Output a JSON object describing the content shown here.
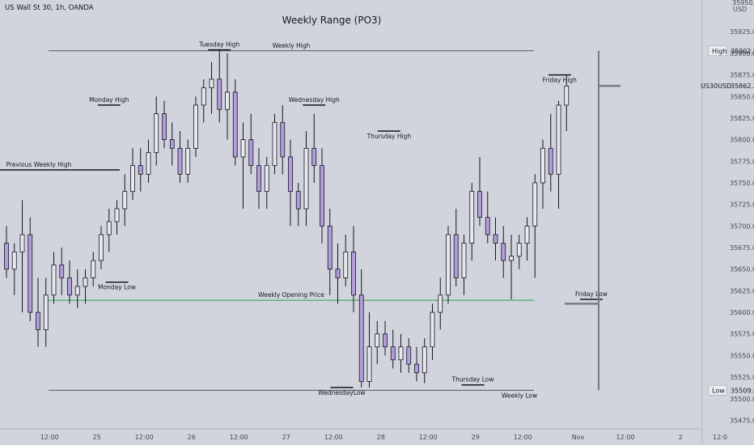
{
  "header": {
    "symbol_line": "US Wall St 30, 1h, OANDA",
    "title": "Weekly Range (PO3)"
  },
  "axis_top_labels": [
    "35950.0",
    "USD"
  ],
  "chart_data": {
    "type": "candlestick",
    "title": "Weekly Range (PO3)",
    "symbol": "US30USD",
    "y_axis": {
      "ticks": [
        35925.0,
        35900.0,
        35875.0,
        35850.0,
        35825.0,
        35800.0,
        35775.0,
        35750.0,
        35725.0,
        35700.0,
        35675.0,
        35650.0,
        35625.0,
        35600.0,
        35575.0,
        35550.0,
        35525.0,
        35500.0,
        35475.0
      ],
      "range": [
        35467.0,
        35958.0
      ],
      "position": "right"
    },
    "x_axis": {
      "ticks": [
        {
          "index": 3,
          "label": "12:00"
        },
        {
          "index": 9,
          "label": "25"
        },
        {
          "index": 15,
          "label": "12:00"
        },
        {
          "index": 21,
          "label": "26"
        },
        {
          "index": 27,
          "label": "12:00"
        },
        {
          "index": 33,
          "label": "27"
        },
        {
          "index": 39,
          "label": "12:00"
        },
        {
          "index": 45,
          "label": "28"
        },
        {
          "index": 51,
          "label": "12:00"
        },
        {
          "index": 57,
          "label": "29"
        },
        {
          "index": 63,
          "label": "12:00"
        },
        {
          "index": 70,
          "label": "Nov"
        },
        {
          "index": 76,
          "label": "12:00"
        },
        {
          "index": 83,
          "label": "2"
        },
        {
          "index": 88,
          "label": "12:0"
        }
      ]
    },
    "candle_colors": {
      "up": "#e8e8ee",
      "down": "#b39ddb",
      "outline": "#131722"
    },
    "candles": [
      [
        35680,
        35700,
        35640,
        35650
      ],
      [
        35650,
        35680,
        35620,
        35670
      ],
      [
        35670,
        35730,
        35600,
        35690
      ],
      [
        35690,
        35710,
        35590,
        35600
      ],
      [
        35600,
        35640,
        35560,
        35580
      ],
      [
        35580,
        35640,
        35560,
        35620
      ],
      [
        35620,
        35670,
        35610,
        35655
      ],
      [
        35655,
        35675,
        35620,
        35640
      ],
      [
        35640,
        35660,
        35610,
        35620
      ],
      [
        35620,
        35650,
        35605,
        35630
      ],
      [
        35630,
        35650,
        35610,
        35640
      ],
      [
        35640,
        35670,
        35630,
        35660
      ],
      [
        35660,
        35700,
        35650,
        35690
      ],
      [
        35690,
        35720,
        35670,
        35705
      ],
      [
        35705,
        35730,
        35690,
        35720
      ],
      [
        35720,
        35760,
        35700,
        35740
      ],
      [
        35740,
        35790,
        35730,
        35770
      ],
      [
        35770,
        35790,
        35740,
        35760
      ],
      [
        35760,
        35800,
        35750,
        35785
      ],
      [
        35785,
        35850,
        35770,
        35830
      ],
      [
        35830,
        35845,
        35790,
        35800
      ],
      [
        35800,
        35820,
        35770,
        35790
      ],
      [
        35790,
        35810,
        35750,
        35760
      ],
      [
        35760,
        35800,
        35750,
        35790
      ],
      [
        35790,
        35850,
        35780,
        35840
      ],
      [
        35840,
        35870,
        35820,
        35860
      ],
      [
        35860,
        35890,
        35830,
        35870
      ],
      [
        35870,
        35905,
        35820,
        35835
      ],
      [
        35835,
        35900,
        35800,
        35855
      ],
      [
        35855,
        35870,
        35770,
        35780
      ],
      [
        35780,
        35820,
        35720,
        35800
      ],
      [
        35800,
        35830,
        35760,
        35770
      ],
      [
        35770,
        35790,
        35720,
        35740
      ],
      [
        35740,
        35780,
        35720,
        35770
      ],
      [
        35770,
        35830,
        35760,
        35820
      ],
      [
        35820,
        35840,
        35760,
        35780
      ],
      [
        35780,
        35800,
        35700,
        35740
      ],
      [
        35740,
        35750,
        35700,
        35720
      ],
      [
        35720,
        35810,
        35700,
        35790
      ],
      [
        35790,
        35830,
        35750,
        35770
      ],
      [
        35770,
        35790,
        35680,
        35700
      ],
      [
        35700,
        35720,
        35620,
        35650
      ],
      [
        35650,
        35680,
        35610,
        35640
      ],
      [
        35640,
        35690,
        35630,
        35670
      ],
      [
        35670,
        35700,
        35600,
        35620
      ],
      [
        35620,
        35650,
        35513,
        35520
      ],
      [
        35520,
        35600,
        35513,
        35560
      ],
      [
        35560,
        35590,
        35540,
        35575
      ],
      [
        35575,
        35590,
        35550,
        35560
      ],
      [
        35560,
        35580,
        35535,
        35545
      ],
      [
        35545,
        35575,
        35530,
        35560
      ],
      [
        35560,
        35570,
        35530,
        35540
      ],
      [
        35540,
        35560,
        35520,
        35530
      ],
      [
        35530,
        35570,
        35518,
        35560
      ],
      [
        35560,
        35610,
        35545,
        35600
      ],
      [
        35600,
        35640,
        35580,
        35620
      ],
      [
        35620,
        35700,
        35610,
        35690
      ],
      [
        35690,
        35720,
        35630,
        35640
      ],
      [
        35640,
        35690,
        35620,
        35680
      ],
      [
        35680,
        35750,
        35660,
        35740
      ],
      [
        35740,
        35780,
        35700,
        35710
      ],
      [
        35710,
        35740,
        35680,
        35690
      ],
      [
        35690,
        35710,
        35660,
        35680
      ],
      [
        35680,
        35700,
        35640,
        35660
      ],
      [
        35660,
        35690,
        35615,
        35665
      ],
      [
        35665,
        35690,
        35650,
        35680
      ],
      [
        35680,
        35710,
        35660,
        35700
      ],
      [
        35700,
        35760,
        35640,
        35750
      ],
      [
        35750,
        35800,
        35720,
        35790
      ],
      [
        35790,
        35830,
        35740,
        35760
      ],
      [
        35760,
        35845,
        35720,
        35840
      ],
      [
        35840,
        35875,
        35810,
        35862
      ]
    ],
    "reference_lines": [
      {
        "label": "Weekly High",
        "value": 35902.9,
        "color": "#555555"
      },
      {
        "label": "Weekly Low",
        "value": 35509.8,
        "color": "#555555"
      },
      {
        "label": "Weekly Opening Price",
        "value": 35614.0,
        "color": "#2e9e46"
      },
      {
        "label": "Previous Weekly High",
        "value": 35765.0,
        "color": "#131722"
      }
    ],
    "annotations": [
      {
        "label": "Monday High",
        "value": 35840
      },
      {
        "label": "Monday Low",
        "value": 35635
      },
      {
        "label": "Tuesday High",
        "value": 35904
      },
      {
        "label": "Wednesday High",
        "value": 35840
      },
      {
        "label": "WednesdayLow",
        "value": 35513
      },
      {
        "label": "Thursday High",
        "value": 35810
      },
      {
        "label": "Thursday Low",
        "value": 35516
      },
      {
        "label": "Friday High",
        "value": 35875
      },
      {
        "label": "Friday Low",
        "value": 35615
      }
    ],
    "price_tags": [
      {
        "label": "High",
        "value": 35902.9,
        "text": "35902.9"
      },
      {
        "label": "US30USD",
        "value": 35862.3,
        "text": "35862.3"
      },
      {
        "label": "Low",
        "value": 35509.8,
        "text": "35509.8"
      }
    ],
    "range_bar": {
      "top": 35902.9,
      "bottom": 35509.8,
      "markers": [
        35862.3,
        35610.0
      ]
    }
  }
}
